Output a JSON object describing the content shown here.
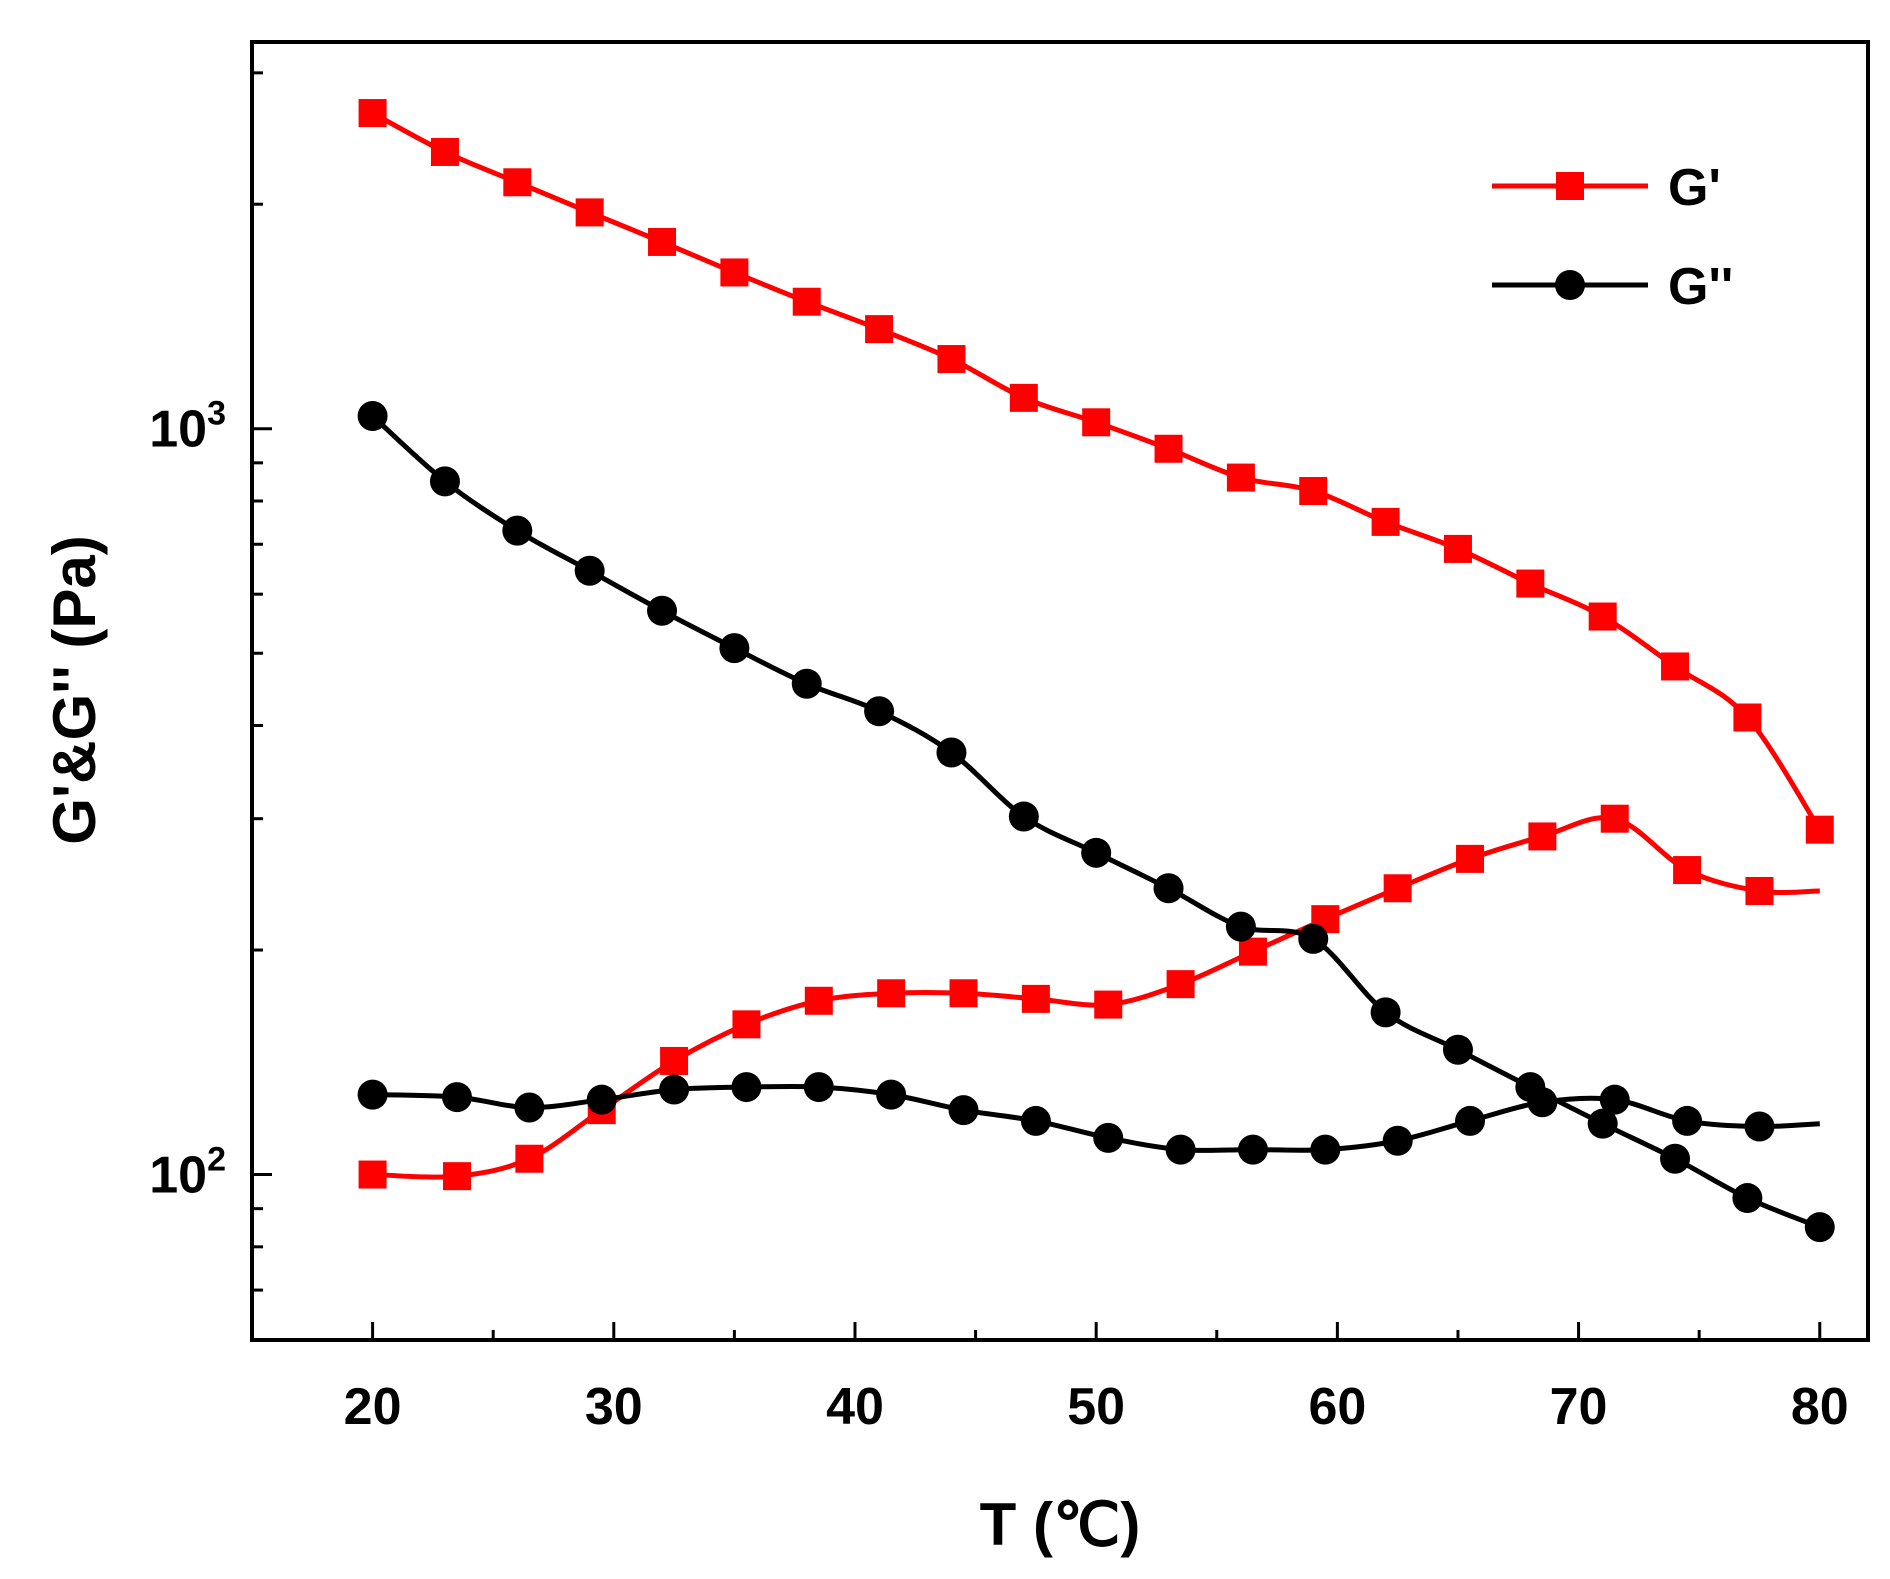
{
  "chart_data": {
    "type": "line",
    "title": "",
    "xlabel": "T (℃)",
    "ylabel": "G'&G'' (Pa)",
    "xlim": [
      15,
      82
    ],
    "ylim": [
      60,
      3300
    ],
    "yscale": "log",
    "x_ticks": [
      "20",
      "30",
      "40",
      "50",
      "60",
      "70",
      "80"
    ],
    "y_ticks": [
      {
        "base": "10",
        "exp": "2",
        "value": 100
      },
      {
        "base": "10",
        "exp": "3",
        "value": 1000
      }
    ],
    "legend": [
      {
        "name": "G'",
        "color": "#ff0000",
        "marker": "square"
      },
      {
        "name": "G''",
        "color": "#000000",
        "marker": "circle"
      }
    ],
    "legend_position": "top-right",
    "series": [
      {
        "name": "G'",
        "color": "#ff0000",
        "marker": "square",
        "segment": "heating",
        "points": [
          [
            20,
            2650
          ],
          [
            23,
            2350
          ],
          [
            26,
            2140
          ],
          [
            29,
            1950
          ],
          [
            32,
            1780
          ],
          [
            35,
            1620
          ],
          [
            38,
            1480
          ],
          [
            41,
            1360
          ],
          [
            44,
            1240
          ],
          [
            47,
            1100
          ],
          [
            50,
            1020
          ],
          [
            53,
            940
          ],
          [
            56,
            860
          ],
          [
            59,
            825
          ],
          [
            62,
            750
          ],
          [
            65,
            690
          ],
          [
            68,
            620
          ],
          [
            71,
            560
          ],
          [
            74,
            480
          ],
          [
            77,
            410
          ],
          [
            80,
            290
          ]
        ]
      },
      {
        "name": "G'",
        "color": "#ff0000",
        "marker": "square",
        "segment": "cooling",
        "points": [
          [
            80,
            240
          ],
          [
            77.5,
            240
          ],
          [
            74.5,
            256
          ],
          [
            71.5,
            300
          ],
          [
            68.5,
            284
          ],
          [
            65.5,
            265
          ],
          [
            62.5,
            242
          ],
          [
            59.5,
            220
          ],
          [
            56.5,
            199
          ],
          [
            53.5,
            180
          ],
          [
            50.5,
            169
          ],
          [
            47.5,
            172
          ],
          [
            44.5,
            175
          ],
          [
            41.5,
            175
          ],
          [
            38.5,
            171
          ],
          [
            35.5,
            159
          ],
          [
            32.5,
            142
          ],
          [
            29.5,
            122
          ],
          [
            26.5,
            105
          ],
          [
            23.5,
            99.5
          ],
          [
            20,
            100
          ]
        ]
      },
      {
        "name": "G''",
        "color": "#000000",
        "marker": "circle",
        "segment": "heating",
        "points": [
          [
            20,
            1040
          ],
          [
            23,
            850
          ],
          [
            26,
            730
          ],
          [
            29,
            645
          ],
          [
            32,
            570
          ],
          [
            35,
            508
          ],
          [
            38,
            455
          ],
          [
            41,
            418
          ],
          [
            44,
            368
          ],
          [
            47,
            302
          ],
          [
            50,
            270
          ],
          [
            53,
            242
          ],
          [
            56,
            215
          ],
          [
            59,
            207
          ],
          [
            62,
            165
          ],
          [
            65,
            147
          ],
          [
            68,
            131
          ],
          [
            71,
            117
          ],
          [
            74,
            105
          ],
          [
            77,
            93
          ],
          [
            80,
            85
          ]
        ]
      },
      {
        "name": "G''",
        "color": "#000000",
        "marker": "circle",
        "segment": "cooling",
        "points": [
          [
            80,
            117
          ],
          [
            77.5,
            116
          ],
          [
            74.5,
            118
          ],
          [
            71.5,
            126
          ],
          [
            68.5,
            125
          ],
          [
            65.5,
            118
          ],
          [
            62.5,
            111
          ],
          [
            59.5,
            108
          ],
          [
            56.5,
            108
          ],
          [
            53.5,
            108
          ],
          [
            50.5,
            112
          ],
          [
            47.5,
            118
          ],
          [
            44.5,
            122
          ],
          [
            41.5,
            128
          ],
          [
            38.5,
            131
          ],
          [
            35.5,
            131
          ],
          [
            32.5,
            130
          ],
          [
            29.5,
            126
          ],
          [
            26.5,
            123
          ],
          [
            23.5,
            127
          ],
          [
            20,
            128
          ]
        ]
      }
    ]
  }
}
